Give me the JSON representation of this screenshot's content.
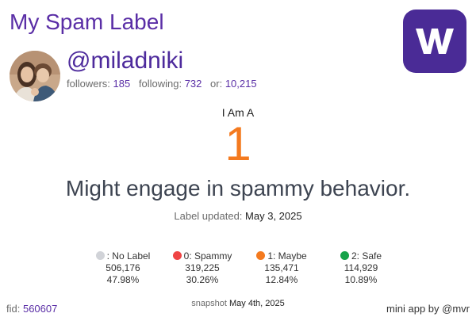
{
  "header": {
    "title": "My Spam Label",
    "logo_icon": "warpcast-w-logo",
    "logo_color": "#4a2b96"
  },
  "profile": {
    "avatar_icon": "profile-photo-avatar",
    "handle": "@miladniki",
    "followers_label": "followers:",
    "followers": "185",
    "following_label": "following:",
    "following": "732",
    "or_label": "or:",
    "or": "10,215"
  },
  "label": {
    "heading": "I Am A",
    "value": "1",
    "value_color": "#f47a1f",
    "description": "Might engage in spammy behavior.",
    "updated_label": "Label updated:",
    "updated_value": "May 3, 2025"
  },
  "legend": [
    {
      "label": ": No Label",
      "count": "506,176",
      "percent": "47.98%",
      "color": "#d1d3d8"
    },
    {
      "label": "0: Spammy",
      "count": "319,225",
      "percent": "30.26%",
      "color": "#ef4444"
    },
    {
      "label": "1: Maybe",
      "count": "135,471",
      "percent": "12.84%",
      "color": "#f47a1f"
    },
    {
      "label": "2: Safe",
      "count": "114,929",
      "percent": "10.89%",
      "color": "#16a34a"
    }
  ],
  "footer": {
    "fid_label": "fid:",
    "fid": "560607",
    "snapshot_label": "snapshot",
    "snapshot_value": "May 4th, 2025",
    "mini_app": "mini app by @mvr"
  }
}
